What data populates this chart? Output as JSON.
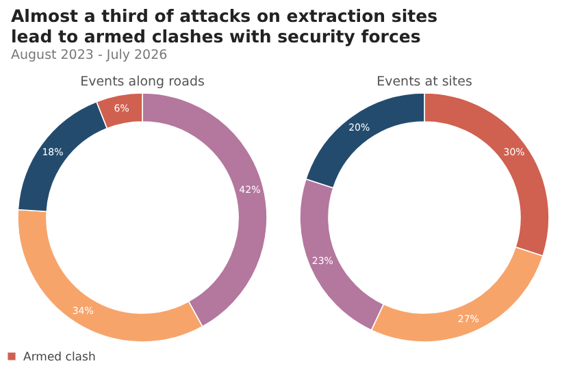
{
  "chart_data": [
    {
      "type": "donut",
      "title": "Events along roads",
      "annotations": [
        "Almost a third of attacks on extraction sites lead to armed clashes with security forces",
        "August 2023 - July 2026"
      ],
      "categories": [
        null,
        null,
        null,
        "Armed clash"
      ],
      "values": [
        42,
        34,
        18,
        6
      ],
      "value_labels": [
        "42%",
        "34%",
        "18%",
        "6%"
      ],
      "colors": [
        "#b4779e",
        "#f7a46b",
        "#234b6e",
        "#d0604f"
      ],
      "legend": "bottom left"
    },
    {
      "type": "donut",
      "title": "Events at sites",
      "categories": [
        null,
        null,
        null,
        null
      ],
      "values": [
        30,
        27,
        23,
        20
      ],
      "value_labels": [
        "30%",
        "27%",
        "23%",
        "20%"
      ],
      "colors": [
        "#d0604f",
        "#f7a46b",
        "#b4779e",
        "#234b6e"
      ]
    }
  ]
}
